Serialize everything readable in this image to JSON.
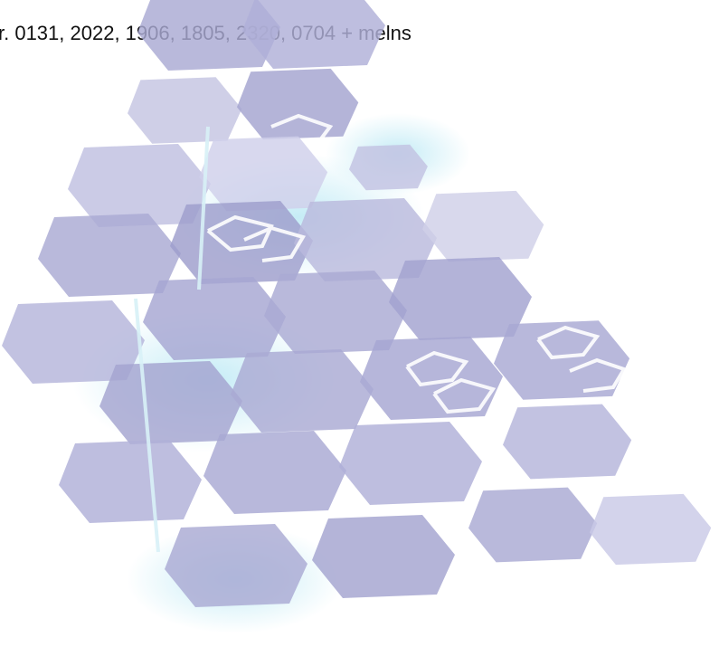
{
  "caption": "r. 0131, 2022, 1906, 1805, 2320, 0704 + melns"
}
